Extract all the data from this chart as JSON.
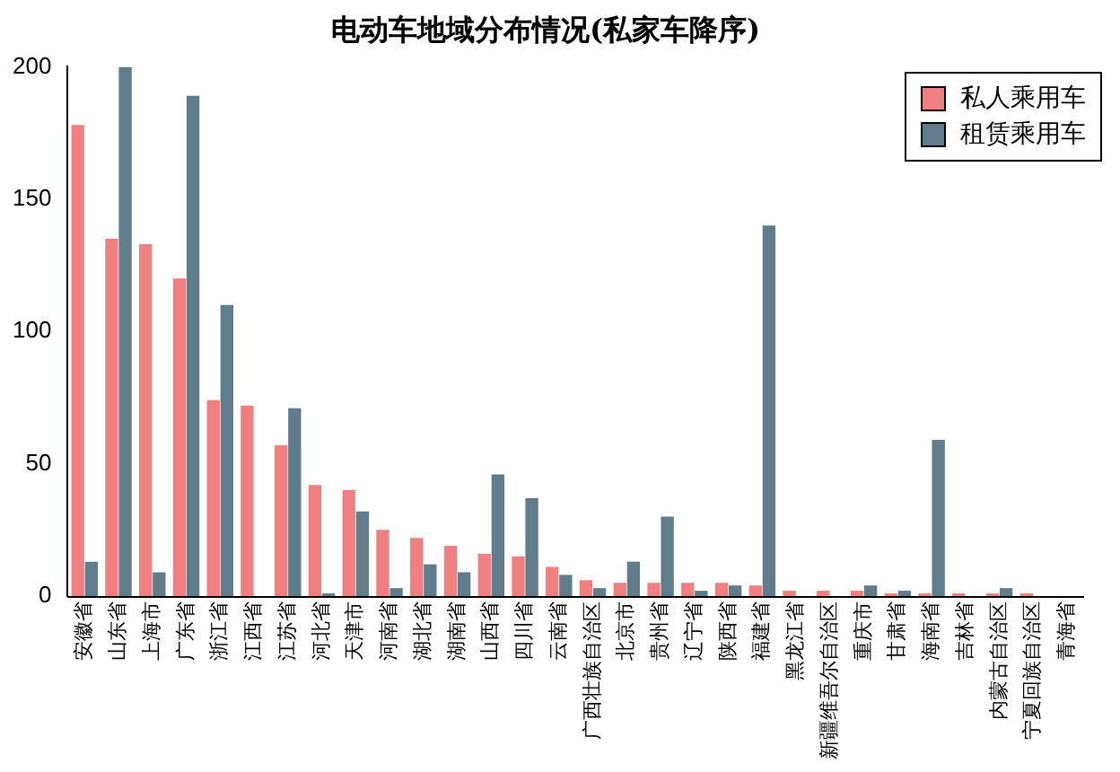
{
  "chart_data": {
    "type": "bar",
    "title": "电动车地域分布情况(私家车降序)",
    "categories": [
      "安徽省",
      "山东省",
      "上海市",
      "广东省",
      "浙江省",
      "江西省",
      "江苏省",
      "河北省",
      "天津市",
      "河南省",
      "湖北省",
      "湖南省",
      "山西省",
      "四川省",
      "云南省",
      "广西壮族自治区",
      "北京市",
      "贵州省",
      "辽宁省",
      "陕西省",
      "福建省",
      "黑龙江省",
      "新疆维吾尔自治区",
      "重庆市",
      "甘肃省",
      "海南省",
      "吉林省",
      "内蒙古自治区",
      "宁夏回族自治区",
      "青海省"
    ],
    "series": [
      {
        "name": "私人乘用车",
        "color": "#f08080",
        "values": [
          178,
          135,
          133,
          120,
          74,
          72,
          57,
          42,
          40,
          25,
          22,
          19,
          16,
          15,
          11,
          6,
          5,
          5,
          5,
          5,
          4,
          2,
          2,
          2,
          1,
          1,
          1,
          1,
          1,
          0
        ]
      },
      {
        "name": "租赁乘用车",
        "color": "#607d8b",
        "values": [
          13,
          200,
          9,
          189,
          110,
          0,
          71,
          1,
          32,
          3,
          12,
          9,
          46,
          37,
          8,
          3,
          13,
          30,
          2,
          4,
          140,
          0,
          0,
          4,
          2,
          59,
          0,
          3,
          0,
          0
        ]
      }
    ],
    "ylim": [
      0,
      200
    ],
    "yticks": [
      0,
      50,
      100,
      150,
      200
    ],
    "grid": false,
    "legend": "top right"
  }
}
